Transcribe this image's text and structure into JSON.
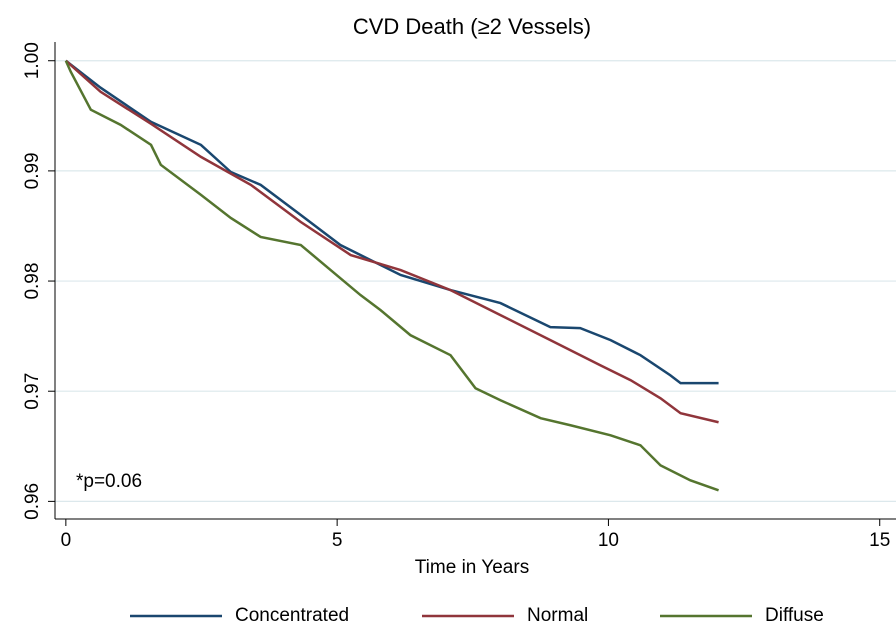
{
  "chart_data": {
    "type": "line",
    "title": "CVD Death (≥2 Vessels)",
    "x_label": "Time in Years",
    "annotation": "*p=0.06",
    "xlim": [
      -0.2,
      15.3
    ],
    "ylim": [
      0.9584,
      1.0017
    ],
    "xticks": [
      0,
      5,
      10,
      15
    ],
    "yticks": [
      {
        "value": 1.0,
        "label": "1.00"
      },
      0.99,
      0.98,
      0.97,
      0.96
    ],
    "grid": true,
    "legend": "bottom",
    "series": [
      {
        "name": "Concentrated",
        "color": "#1a476f",
        "x": [
          0,
          0.64,
          1.57,
          2.49,
          3.04,
          3.59,
          4.33,
          5.06,
          6.17,
          7.09,
          8.01,
          8.93,
          9.48,
          10.04,
          10.59,
          11.14,
          11.33,
          12.03
        ],
        "values": [
          1.0,
          0.99755,
          0.99445,
          0.99236,
          0.9899,
          0.98873,
          0.986,
          0.98327,
          0.98055,
          0.97918,
          0.978,
          0.97582,
          0.97573,
          0.97464,
          0.97327,
          0.97145,
          0.97073,
          0.97073
        ]
      },
      {
        "name": "Normal",
        "color": "#90353b",
        "x": [
          0,
          0.64,
          1.57,
          2.49,
          3.41,
          4.33,
          5.25,
          6.17,
          7.09,
          8.01,
          8.93,
          9.85,
          10.41,
          10.96,
          11.33,
          12.03
        ],
        "values": [
          1.0,
          0.99718,
          0.99427,
          0.99127,
          0.98873,
          0.98536,
          0.98236,
          0.981,
          0.97918,
          0.97691,
          0.97464,
          0.97236,
          0.971,
          0.96936,
          0.968,
          0.96718
        ]
      },
      {
        "name": "Diffuse",
        "color": "#55752f",
        "x": [
          0,
          0.09,
          0.46,
          1.01,
          1.57,
          1.75,
          2.49,
          3.04,
          3.59,
          4.33,
          4.88,
          5.43,
          5.8,
          6.35,
          7.09,
          7.55,
          8.01,
          8.75,
          9.3,
          10.04,
          10.59,
          10.96,
          11.51,
          12.03
        ],
        "values": [
          1.0,
          0.999,
          0.99555,
          0.99418,
          0.99236,
          0.99055,
          0.98782,
          0.98573,
          0.984,
          0.98327,
          0.981,
          0.97873,
          0.97736,
          0.97509,
          0.97327,
          0.97027,
          0.96918,
          0.96755,
          0.96691,
          0.966,
          0.96509,
          0.96327,
          0.96191,
          0.961
        ]
      }
    ]
  }
}
